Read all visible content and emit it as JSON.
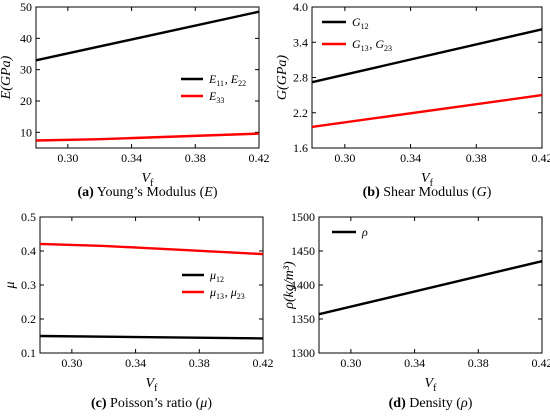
{
  "chart_data": [
    {
      "id": "a",
      "type": "line",
      "caption": {
        "letter": "(a)",
        "text": "Young’s Modulus (",
        "symbol": "E",
        "close": ")"
      },
      "xlabel": {
        "main": "V",
        "sub": "f"
      },
      "ylabel": "E(GPa)",
      "xlim": [
        0.28,
        0.42
      ],
      "ylim": [
        5,
        50
      ],
      "xticks": [
        0.3,
        0.34,
        0.38,
        0.42
      ],
      "xtick_labels": [
        "0.30",
        "0.34",
        "0.38",
        "0.42"
      ],
      "yticks": [
        10,
        20,
        30,
        40,
        50
      ],
      "ytick_labels": [
        "10",
        "20",
        "30",
        "40",
        "50"
      ],
      "legend": {
        "position": "right-middle"
      },
      "series": [
        {
          "name": "E11, E22",
          "legend_parts": [
            [
              "E",
              "11"
            ],
            [
              "E",
              "22"
            ]
          ],
          "color": "#000000",
          "x": [
            0.28,
            0.42
          ],
          "y": [
            33.0,
            48.5
          ]
        },
        {
          "name": "E33",
          "legend_parts": [
            [
              "E",
              "33"
            ]
          ],
          "color": "#ff0000",
          "x": [
            0.28,
            0.32,
            0.42
          ],
          "y": [
            7.4,
            7.8,
            9.6
          ]
        }
      ]
    },
    {
      "id": "b",
      "type": "line",
      "caption": {
        "letter": "(b)",
        "text": "Shear Modulus (",
        "symbol": "G",
        "close": ")"
      },
      "xlabel": {
        "main": "V",
        "sub": "f"
      },
      "ylabel": "G(GPa)",
      "xlim": [
        0.28,
        0.42
      ],
      "ylim": [
        1.6,
        4.0
      ],
      "xticks": [
        0.3,
        0.34,
        0.38,
        0.42
      ],
      "xtick_labels": [
        "0.30",
        "0.34",
        "0.38",
        "0.42"
      ],
      "yticks": [
        1.6,
        2.2,
        2.8,
        3.4,
        4.0
      ],
      "ytick_labels": [
        "1.6",
        "2.2",
        "2.8",
        "3.4",
        "4.0"
      ],
      "legend": {
        "position": "top-left"
      },
      "series": [
        {
          "name": "G12",
          "legend_parts": [
            [
              "G",
              "12"
            ]
          ],
          "color": "#000000",
          "x": [
            0.28,
            0.42
          ],
          "y": [
            2.72,
            3.62
          ]
        },
        {
          "name": "G13, G23",
          "legend_parts": [
            [
              "G",
              "13"
            ],
            [
              "G",
              "23"
            ]
          ],
          "color": "#ff0000",
          "x": [
            0.28,
            0.42
          ],
          "y": [
            1.96,
            2.5
          ]
        }
      ]
    },
    {
      "id": "c",
      "type": "line",
      "caption": {
        "letter": "(c)",
        "text": "Poisson’s ratio (",
        "symbol": "μ",
        "close": ")"
      },
      "xlabel": {
        "main": "V",
        "sub": "f"
      },
      "ylabel": "μ",
      "xlim": [
        0.28,
        0.42
      ],
      "ylim": [
        0.1,
        0.5
      ],
      "xticks": [
        0.3,
        0.34,
        0.38,
        0.42
      ],
      "xtick_labels": [
        "0.30",
        "0.34",
        "0.38",
        "0.42"
      ],
      "yticks": [
        0.1,
        0.2,
        0.3,
        0.4,
        0.5
      ],
      "ytick_labels": [
        "0.1",
        "0.2",
        "0.3",
        "0.4",
        "0.5"
      ],
      "legend": {
        "position": "right-middle"
      },
      "series": [
        {
          "name": "μ12",
          "legend_parts": [
            [
              "μ",
              "12"
            ]
          ],
          "color": "#000000",
          "x": [
            0.28,
            0.42
          ],
          "y": [
            0.15,
            0.143
          ]
        },
        {
          "name": "μ13, μ23",
          "legend_parts": [
            [
              "μ",
              "13"
            ],
            [
              "μ",
              "23"
            ]
          ],
          "color": "#ff0000",
          "x": [
            0.28,
            0.32,
            0.42
          ],
          "y": [
            0.421,
            0.415,
            0.391
          ]
        }
      ]
    },
    {
      "id": "d",
      "type": "line",
      "caption": {
        "letter": "(d)",
        "text": "Density (",
        "symbol": "ρ",
        "close": ")"
      },
      "xlabel": {
        "main": "V",
        "sub": "f"
      },
      "ylabel": "ρ(kg/m³)",
      "xlim": [
        0.28,
        0.42
      ],
      "ylim": [
        1300,
        1500
      ],
      "xticks": [
        0.3,
        0.34,
        0.38,
        0.42
      ],
      "xtick_labels": [
        "0.30",
        "0.34",
        "0.38",
        "0.42"
      ],
      "yticks": [
        1300,
        1350,
        1400,
        1450,
        1500
      ],
      "ytick_labels": [
        "1300",
        "1350",
        "1400",
        "1450",
        "1500"
      ],
      "legend": {
        "position": "top-left"
      },
      "series": [
        {
          "name": "ρ",
          "legend_parts": [
            [
              "ρ",
              ""
            ]
          ],
          "color": "#000000",
          "x": [
            0.28,
            0.42
          ],
          "y": [
            1357,
            1435
          ]
        }
      ]
    }
  ]
}
